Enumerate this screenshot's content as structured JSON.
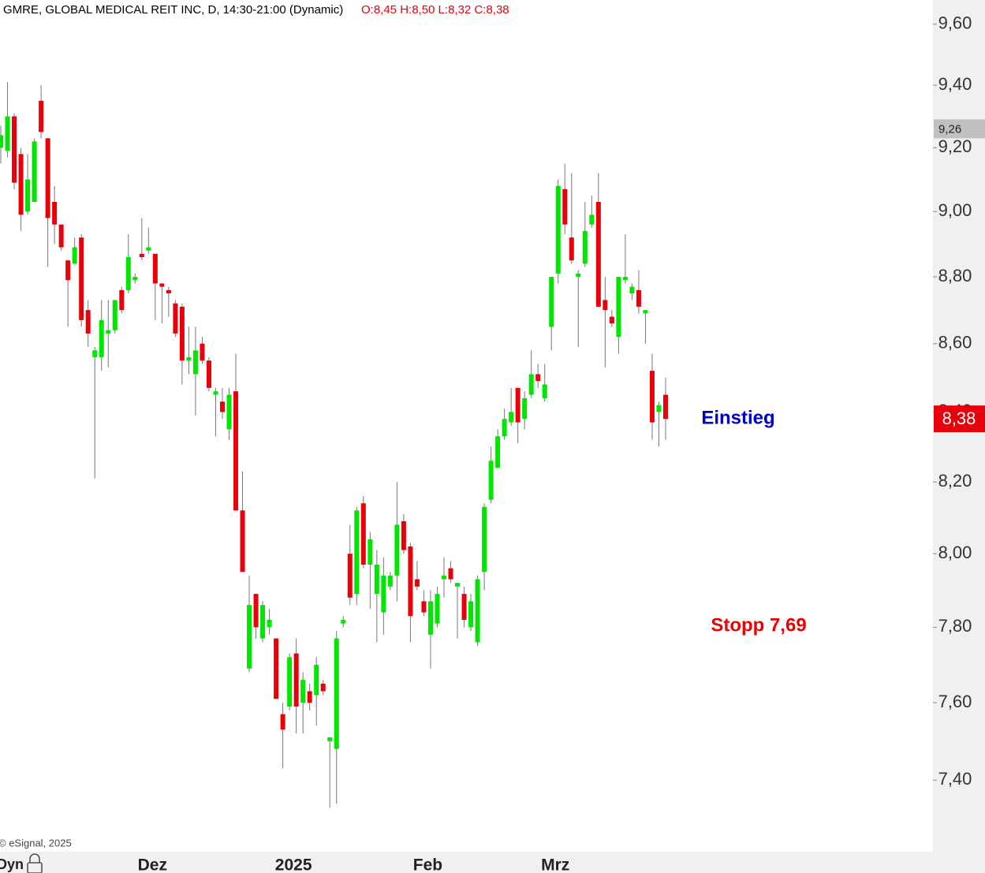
{
  "chart_data": {
    "type": "candlestick",
    "title": "GMRE, GLOBAL MEDICAL REIT INC, D, 14:30-21:00 (Dynamic)",
    "ohlc_label": "O:8,45 H:8,50 L:8,32 C:8,38",
    "copyright": "© eSignal, 2025",
    "mode_label": "Dyn",
    "categories": [
      null,
      null,
      null,
      null,
      null,
      null,
      null,
      null,
      null,
      null,
      null,
      null,
      null,
      null,
      null,
      null,
      null,
      null,
      null,
      null,
      null,
      null,
      "Dez",
      null,
      null,
      null,
      null,
      null,
      null,
      null,
      null,
      null,
      null,
      null,
      null,
      null,
      null,
      null,
      null,
      null,
      null,
      null,
      null,
      "2025",
      null,
      null,
      null,
      null,
      null,
      null,
      null,
      null,
      null,
      null,
      null,
      null,
      null,
      null,
      null,
      null,
      null,
      null,
      null,
      "Feb",
      null,
      null,
      null,
      null,
      null,
      null,
      null,
      null,
      null,
      null,
      null,
      null,
      null,
      null,
      null,
      null,
      null,
      null,
      "Mrz",
      null,
      null,
      null,
      null,
      null,
      null,
      null,
      null,
      null,
      null,
      null,
      null,
      null,
      null,
      null,
      null,
      null
    ],
    "open": [
      9.2,
      9.19,
      9.3,
      9.18,
      9.0,
      9.03,
      9.35,
      9.23,
      9.03,
      8.96,
      8.85,
      8.84,
      8.92,
      8.7,
      8.56,
      8.56,
      8.63,
      8.64,
      8.76,
      8.76,
      8.79,
      8.87,
      8.88,
      8.87,
      8.78,
      8.76,
      8.72,
      8.71,
      8.55,
      8.51,
      8.6,
      8.55,
      8.45,
      8.43,
      8.35,
      8.46,
      8.12,
      7.69,
      7.89,
      7.77,
      7.8,
      7.77,
      7.57,
      7.59,
      7.73,
      7.6,
      7.63,
      7.62,
      7.65,
      7.5,
      7.48,
      7.81,
      8.0,
      7.89,
      8.14,
      7.97,
      7.89,
      7.84,
      7.91,
      7.94,
      8.09,
      8.02,
      7.93,
      7.87,
      7.78,
      7.81,
      7.93,
      7.96,
      7.91,
      7.89,
      7.8,
      7.76,
      7.95,
      8.15,
      8.24,
      8.33,
      8.37,
      8.47,
      8.38,
      8.45,
      8.51,
      8.44,
      8.65,
      8.81,
      9.07,
      8.92,
      8.8,
      8.84,
      8.96,
      9.03,
      8.73,
      8.68,
      8.62,
      8.79,
      8.75,
      8.76,
      8.69,
      8.52,
      8.4,
      8.45
    ],
    "high": [
      9.27,
      9.41,
      9.31,
      9.2,
      9.18,
      9.23,
      9.4,
      9.23,
      9.08,
      8.96,
      8.85,
      8.92,
      8.93,
      8.73,
      8.59,
      8.73,
      8.73,
      8.73,
      8.77,
      8.93,
      8.81,
      8.98,
      8.95,
      8.87,
      8.78,
      8.77,
      8.73,
      8.72,
      8.65,
      8.65,
      8.62,
      8.56,
      8.47,
      8.47,
      8.47,
      8.57,
      8.23,
      7.94,
      7.89,
      7.87,
      7.85,
      7.77,
      7.6,
      7.73,
      7.77,
      7.68,
      7.65,
      7.72,
      7.66,
      7.51,
      7.79,
      7.83,
      8.08,
      8.13,
      8.16,
      8.06,
      8.01,
      7.99,
      7.95,
      8.2,
      8.11,
      8.03,
      7.98,
      7.9,
      7.9,
      7.91,
      7.99,
      7.98,
      7.92,
      7.91,
      7.89,
      7.94,
      8.14,
      8.3,
      8.35,
      8.41,
      8.47,
      8.47,
      8.46,
      8.58,
      8.54,
      8.54,
      8.8,
      9.1,
      9.15,
      9.12,
      8.82,
      9.03,
      9.05,
      9.12,
      8.8,
      8.7,
      8.8,
      8.93,
      8.78,
      8.82,
      8.7,
      8.57,
      8.43,
      8.5
    ],
    "low": [
      9.15,
      9.17,
      9.07,
      8.94,
      8.99,
      9.03,
      9.23,
      8.83,
      8.9,
      8.88,
      8.65,
      8.84,
      8.65,
      8.59,
      8.21,
      8.52,
      8.53,
      8.63,
      8.69,
      8.75,
      8.78,
      8.85,
      8.87,
      8.67,
      8.66,
      8.68,
      8.62,
      8.48,
      8.51,
      8.39,
      8.54,
      8.46,
      8.33,
      8.38,
      8.32,
      8.12,
      7.95,
      7.68,
      7.77,
      7.76,
      7.78,
      7.61,
      7.43,
      7.58,
      7.52,
      7.52,
      7.58,
      7.54,
      7.62,
      7.33,
      7.34,
      7.8,
      7.86,
      7.86,
      7.96,
      7.85,
      7.76,
      7.78,
      7.9,
      7.87,
      8.0,
      7.76,
      7.9,
      7.83,
      7.69,
      7.8,
      7.88,
      7.92,
      7.77,
      7.8,
      7.79,
      7.75,
      7.9,
      8.14,
      8.24,
      8.32,
      8.36,
      8.31,
      8.35,
      8.44,
      8.47,
      8.43,
      8.58,
      8.78,
      8.93,
      8.84,
      8.59,
      8.83,
      8.95,
      8.71,
      8.53,
      8.65,
      8.57,
      8.78,
      8.73,
      8.69,
      8.6,
      8.32,
      8.3,
      8.32
    ],
    "close": [
      9.24,
      9.3,
      9.09,
      8.99,
      9.1,
      9.22,
      9.25,
      8.98,
      8.96,
      8.89,
      8.79,
      8.89,
      8.67,
      8.63,
      8.58,
      8.67,
      8.64,
      8.73,
      8.7,
      8.86,
      8.8,
      8.86,
      8.89,
      8.78,
      8.77,
      8.75,
      8.63,
      8.55,
      8.56,
      8.58,
      8.55,
      8.47,
      8.46,
      8.4,
      8.45,
      8.12,
      7.95,
      7.86,
      7.8,
      7.86,
      7.82,
      7.61,
      7.53,
      7.72,
      7.59,
      7.66,
      7.6,
      7.7,
      7.63,
      7.51,
      7.77,
      7.82,
      7.88,
      8.12,
      7.97,
      8.04,
      7.97,
      7.94,
      7.94,
      8.08,
      8.01,
      7.83,
      7.91,
      7.84,
      7.87,
      7.89,
      7.94,
      7.93,
      7.92,
      7.82,
      7.87,
      7.93,
      8.13,
      8.26,
      8.33,
      8.38,
      8.4,
      8.37,
      8.44,
      8.51,
      8.49,
      8.48,
      8.8,
      9.08,
      8.96,
      8.85,
      8.81,
      8.94,
      8.99,
      8.71,
      8.7,
      8.66,
      8.8,
      8.8,
      8.77,
      8.71,
      8.7,
      8.37,
      8.42,
      8.38
    ],
    "up_color": "#00e600",
    "down_color": "#e8000b",
    "log_scale": true,
    "ylim": [
      7.22,
      9.68
    ],
    "yticks": [
      {
        "value": 7.4,
        "label": "7,40"
      },
      {
        "value": 7.6,
        "label": "7,60"
      },
      {
        "value": 7.8,
        "label": "7,80"
      },
      {
        "value": 8.0,
        "label": "8,00"
      },
      {
        "value": 8.2,
        "label": "8,20"
      },
      {
        "value": 8.4,
        "label": "8,40"
      },
      {
        "value": 8.6,
        "label": "8,60"
      },
      {
        "value": 8.8,
        "label": "8,80"
      },
      {
        "value": 9.0,
        "label": "9,00"
      },
      {
        "value": 9.2,
        "label": "9,20"
      },
      {
        "value": 9.4,
        "label": "9,40"
      },
      {
        "value": 9.6,
        "label": "9,60"
      }
    ],
    "price_markers": [
      {
        "value": 9.26,
        "label": "9,26",
        "color": "#c0c0c0"
      },
      {
        "value": 8.38,
        "label": "8,38",
        "color": "#e8000b"
      }
    ],
    "annotations": [
      {
        "text": "Einstieg",
        "color": "#0000cc"
      },
      {
        "text": "Stopp 7,69",
        "color": "#ee0000"
      }
    ]
  }
}
